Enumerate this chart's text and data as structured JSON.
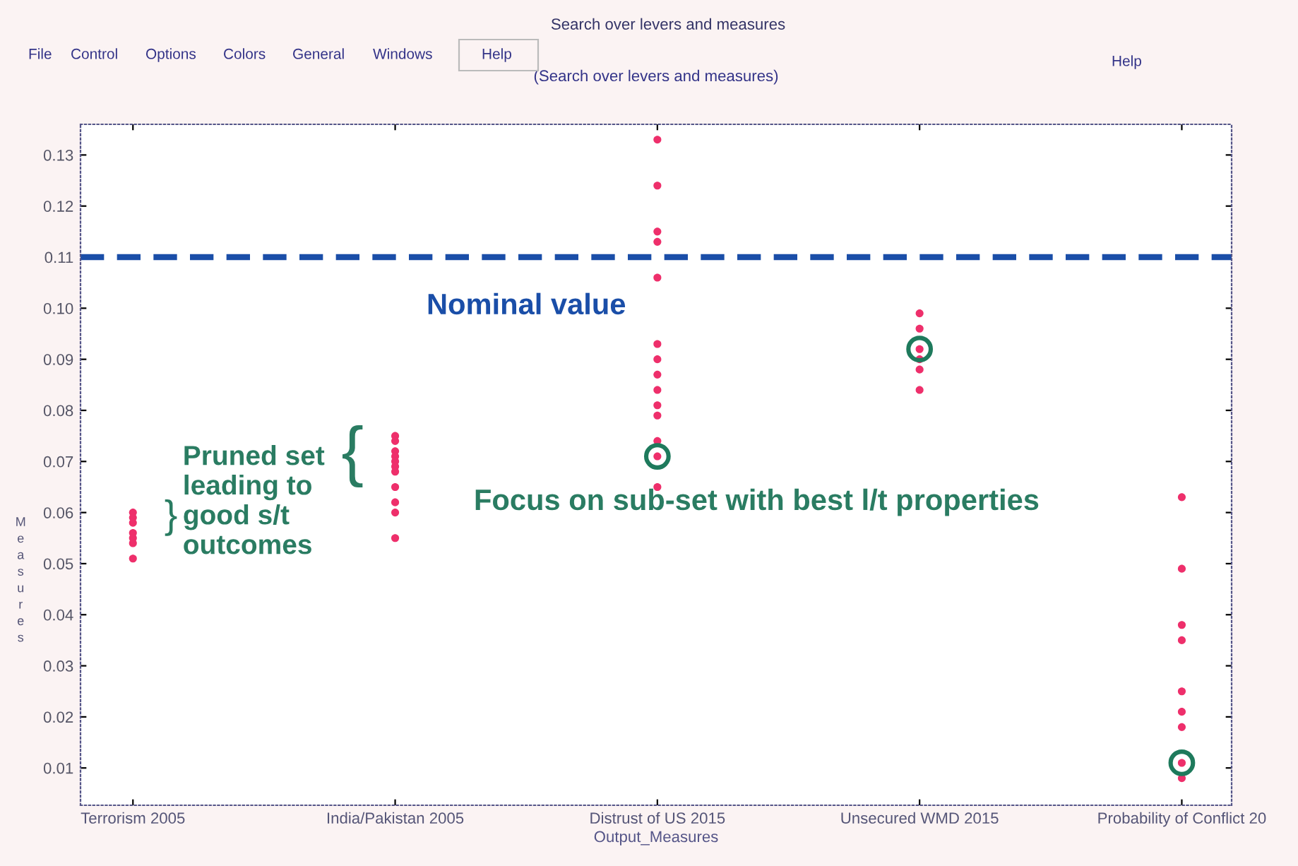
{
  "chart_data": {
    "type": "scatter",
    "title": "(Search over levers and measures)",
    "xlabel": "Output_Measures",
    "ylabel": "Measures",
    "categories": [
      "Terrorism 2005",
      "India/Pakistan 2005",
      "Distrust of US 2015",
      "Unsecured WMD 2015",
      "Probability of Conflict 20"
    ],
    "series": [
      {
        "color": "#ee2f6b",
        "marker": "circle",
        "x": [
          "Terrorism 2005",
          "Terrorism 2005",
          "Terrorism 2005",
          "Terrorism 2005",
          "Terrorism 2005",
          "Terrorism 2005",
          "Terrorism 2005",
          "India/Pakistan 2005",
          "India/Pakistan 2005",
          "India/Pakistan 2005",
          "India/Pakistan 2005",
          "India/Pakistan 2005",
          "India/Pakistan 2005",
          "India/Pakistan 2005",
          "India/Pakistan 2005",
          "India/Pakistan 2005",
          "India/Pakistan 2005",
          "India/Pakistan 2005",
          "Distrust of US 2015",
          "Distrust of US 2015",
          "Distrust of US 2015",
          "Distrust of US 2015",
          "Distrust of US 2015",
          "Distrust of US 2015",
          "Distrust of US 2015",
          "Distrust of US 2015",
          "Distrust of US 2015",
          "Distrust of US 2015",
          "Distrust of US 2015",
          "Distrust of US 2015",
          "Distrust of US 2015",
          "Distrust of US 2015",
          "Unsecured WMD 2015",
          "Unsecured WMD 2015",
          "Unsecured WMD 2015",
          "Unsecured WMD 2015",
          "Unsecured WMD 2015",
          "Unsecured WMD 2015",
          "Probability of Conflict 20",
          "Probability of Conflict 20",
          "Probability of Conflict 20",
          "Probability of Conflict 20",
          "Probability of Conflict 20",
          "Probability of Conflict 20",
          "Probability of Conflict 20",
          "Probability of Conflict 20",
          "Probability of Conflict 20"
        ],
        "values": [
          0.06,
          0.059,
          0.058,
          0.056,
          0.055,
          0.054,
          0.051,
          0.075,
          0.074,
          0.072,
          0.071,
          0.07,
          0.069,
          0.068,
          0.065,
          0.062,
          0.06,
          0.055,
          0.133,
          0.124,
          0.115,
          0.113,
          0.106,
          0.093,
          0.09,
          0.087,
          0.084,
          0.081,
          0.079,
          0.074,
          0.071,
          0.065,
          0.099,
          0.096,
          0.092,
          0.09,
          0.088,
          0.084,
          0.063,
          0.049,
          0.038,
          0.035,
          0.025,
          0.021,
          0.018,
          0.011,
          0.008
        ]
      },
      {
        "color": "#1e7a5c",
        "marker": "circle",
        "x": [
          "Distrust of US 2015",
          "Unsecured WMD 2015",
          "Probability of Conflict 20"
        ],
        "values": [
          0.071,
          0.092,
          0.011
        ]
      }
    ],
    "ylim": [
      0.0027,
      0.136
    ],
    "yticks": [
      0.01,
      0.02,
      0.03,
      0.04,
      0.05,
      0.06,
      0.07,
      0.08,
      0.09,
      {
        "value": 0.1,
        "label": "0.10"
      },
      0.11,
      0.12,
      0.13
    ],
    "ref_lines": [
      {
        "axis": "y",
        "value": 0.11,
        "label": "Nominal value",
        "color": "#1a4ea8",
        "line_style": "dashed"
      }
    ],
    "annotations": [
      "Search over levers and measures",
      "File",
      "Control",
      "Options",
      "Colors",
      "General",
      "Windows",
      "Help",
      "Help",
      "Pruned set\nleading to\ngood s/t\noutcomes",
      "}",
      "{",
      "Focus on sub-set with best l/t properties"
    ],
    "grid": false
  }
}
